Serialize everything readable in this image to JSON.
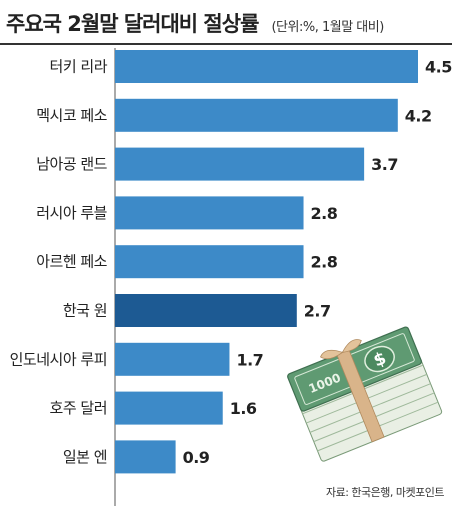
{
  "title": "주요국 2월말 달러대비 절상률",
  "unit_note": "(단위:%, 1월말 대비)",
  "source": "자료: 한국은행, 마켓포인트",
  "illustration": {
    "icon": "money-stack-icon",
    "bill_text": "1000"
  },
  "colors": {
    "bar": "#3d8ac8",
    "highlight_bar": "#1d5a93",
    "text": "#222222"
  },
  "chart_data": {
    "type": "bar",
    "orientation": "horizontal",
    "categories": [
      "터키 리라",
      "멕시코 페소",
      "남아공 랜드",
      "러시아 루블",
      "아르헨 페소",
      "한국 원",
      "인도네시아 루피",
      "호주 달러",
      "일본 엔"
    ],
    "values": [
      4.5,
      4.2,
      3.7,
      2.8,
      2.8,
      2.7,
      1.7,
      1.6,
      0.9
    ],
    "value_labels": [
      "4.5",
      "4.2",
      "3.7",
      "2.8",
      "2.8",
      "2.7",
      "1.7",
      "1.6",
      "0.9"
    ],
    "highlight_category": "한국 원",
    "title": "주요국 2월말 달러대비 절상률",
    "xlabel": "",
    "ylabel": "",
    "xlim": [
      0,
      4.5
    ],
    "grid": false,
    "legend": "none"
  }
}
